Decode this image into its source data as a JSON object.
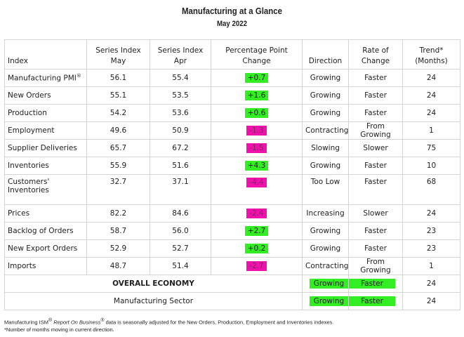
{
  "title": "Manufacturing at a Glance",
  "subtitle": "May 2022",
  "headers": {
    "index": "Index",
    "may": [
      "Series Index",
      "May"
    ],
    "apr": [
      "Series Index",
      "Apr"
    ],
    "change": [
      "Percentage Point",
      "Change"
    ],
    "direction": "Direction",
    "rate": [
      "Rate of",
      "Change"
    ],
    "trend": [
      "Trend*",
      "(Months)"
    ]
  },
  "rows": [
    {
      "index": "Manufacturing PMI",
      "sup": "®",
      "may": "56.1",
      "apr": "55.4",
      "change": "+0.7",
      "sign": "pos",
      "direction": "Growing",
      "rate": "Faster",
      "trend": "24"
    },
    {
      "index": "New Orders",
      "may": "55.1",
      "apr": "53.5",
      "change": "+1.6",
      "sign": "pos",
      "direction": "Growing",
      "rate": "Faster",
      "trend": "24"
    },
    {
      "index": "Production",
      "may": "54.2",
      "apr": "53.6",
      "change": "+0.6",
      "sign": "pos",
      "direction": "Growing",
      "rate": "Faster",
      "trend": "24"
    },
    {
      "index": "Employment",
      "may": "49.6",
      "apr": "50.9",
      "change": "-1.3",
      "sign": "neg",
      "direction": "Contracting",
      "rate": "From Growing",
      "trend": "1"
    },
    {
      "index": "Supplier Deliveries",
      "may": "65.7",
      "apr": "67.2",
      "change": "-1.5",
      "sign": "neg",
      "direction": "Slowing",
      "rate": "Slower",
      "trend": "75"
    },
    {
      "index": "Inventories",
      "may": "55.9",
      "apr": "51.6",
      "change": "+4.3",
      "sign": "pos",
      "direction": "Growing",
      "rate": "Faster",
      "trend": "10"
    },
    {
      "index": [
        "Customers'",
        "Inventories"
      ],
      "may": "32.7",
      "apr": "37.1",
      "change": "-4.4",
      "sign": "neg",
      "direction": "Too Low",
      "rate": "Faster",
      "trend": "68"
    },
    {
      "index": "Prices",
      "may": "82.2",
      "apr": "84.6",
      "change": "-2.4",
      "sign": "neg",
      "direction": "Increasing",
      "rate": "Slower",
      "trend": "24"
    },
    {
      "index": "Backlog of Orders",
      "may": "58.7",
      "apr": "56.0",
      "change": "+2.7",
      "sign": "pos",
      "direction": "Growing",
      "rate": "Faster",
      "trend": "23"
    },
    {
      "index": "New Export Orders",
      "may": "52.9",
      "apr": "52.7",
      "change": "+0.2",
      "sign": "pos",
      "direction": "Growing",
      "rate": "Faster",
      "trend": "23"
    },
    {
      "index": "Imports",
      "may": "48.7",
      "apr": "51.4",
      "change": "-2.7",
      "sign": "neg",
      "direction": "Contracting",
      "rate": "From Growing",
      "trend": "1"
    }
  ],
  "summary": [
    {
      "label": "OVERALL ECONOMY",
      "direction": "Growing",
      "rate": "Faster",
      "trend": "24"
    },
    {
      "label": "Manufacturing Sector",
      "direction": "Growing",
      "rate": "Faster",
      "trend": "24"
    }
  ],
  "notes": {
    "line1_a": "Manufacturing ISM",
    "line1_sup1": "®",
    "line1_b": "Report On Business",
    "line1_sup2": "®",
    "line1_c": "data is seasonally adjusted for the New Orders, Production, Employment and Inventories indexes.",
    "line2": "*Number of months moving in current direction."
  },
  "colors": {
    "positive": "#33ee22",
    "negative": "#ee11aa"
  }
}
